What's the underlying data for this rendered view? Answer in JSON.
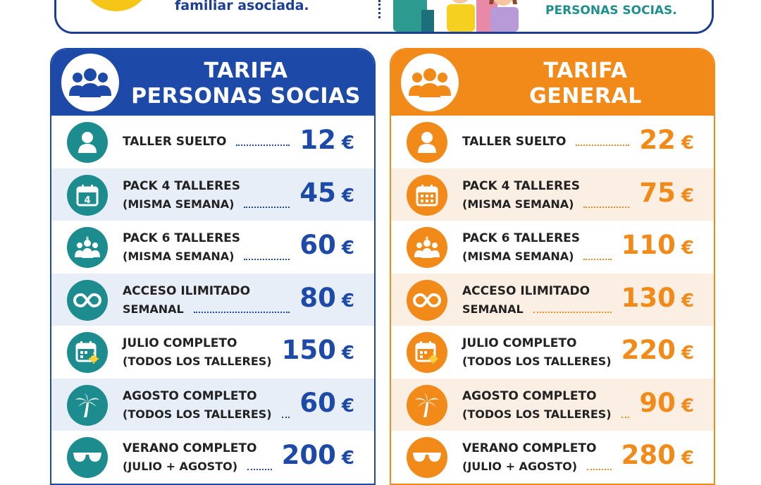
{
  "banner": {
    "assoc_text": "familiar asociada.",
    "socias_text": "PERSONAS SOCIAS."
  },
  "panels": [
    {
      "title_line1": "TARIFA",
      "title_line2": "PERSONAS SOCIAS",
      "accent": "#1d4aa8",
      "icon_color": "#1d8c8f",
      "rows": [
        {
          "label1": "TALLER SUELTO",
          "label2": "",
          "price": "12",
          "currency": "€",
          "icon": "person-icon"
        },
        {
          "label1": "PACK 4 TALLERES",
          "label2": "(MISMA SEMANA)",
          "price": "45",
          "currency": "€",
          "icon": "calendar-4-icon"
        },
        {
          "label1": "PACK 6 TALLERES",
          "label2": "(MISMA SEMANA)",
          "price": "60",
          "currency": "€",
          "icon": "group-6-icon"
        },
        {
          "label1": "ACCESO ILIMITADO",
          "label2": "SEMANAL",
          "price": "80",
          "currency": "€",
          "icon": "infinity-icon"
        },
        {
          "label1": "JULIO COMPLETO",
          "label2": "(TODOS LOS TALLERES)",
          "price": "150",
          "currency": "€",
          "icon": "calendar-sun-icon"
        },
        {
          "label1": "AGOSTO COMPLETO",
          "label2": "(TODOS LOS TALLERES)",
          "price": "60",
          "currency": "€",
          "icon": "palm-tree-icon"
        },
        {
          "label1": "VERANO COMPLETO",
          "label2": "(JULIO + AGOSTO)",
          "price": "200",
          "currency": "€",
          "icon": "sunglasses-icon"
        }
      ]
    },
    {
      "title_line1": "TARIFA",
      "title_line2": "GENERAL",
      "accent": "#f28a1a",
      "icon_color": "#f28a1a",
      "rows": [
        {
          "label1": "TALLER SUELTO",
          "label2": "",
          "price": "22",
          "currency": "€",
          "icon": "person-icon"
        },
        {
          "label1": "PACK 4 TALLERES",
          "label2": "(MISMA SEMANA)",
          "price": "75",
          "currency": "€",
          "icon": "calendar-icon"
        },
        {
          "label1": "PACK 6 TALLERES",
          "label2": "(MISMA SEMANA)",
          "price": "110",
          "currency": "€",
          "icon": "group-6-icon"
        },
        {
          "label1": "ACCESO ILIMITADO",
          "label2": "SEMANAL",
          "price": "130",
          "currency": "€",
          "icon": "infinity-icon"
        },
        {
          "label1": "JULIO COMPLETO",
          "label2": "(TODOS LOS TALLERES)",
          "price": "220",
          "currency": "€",
          "icon": "calendar-sun-icon"
        },
        {
          "label1": "AGOSTO COMPLETO",
          "label2": "(TODOS LOS TALLERES)",
          "price": "90",
          "currency": "€",
          "icon": "palm-tree-icon"
        },
        {
          "label1": "VERANO COMPLETO",
          "label2": "(JULIO + AGOSTO)",
          "price": "280",
          "currency": "€",
          "icon": "sunglasses-icon"
        }
      ]
    }
  ]
}
